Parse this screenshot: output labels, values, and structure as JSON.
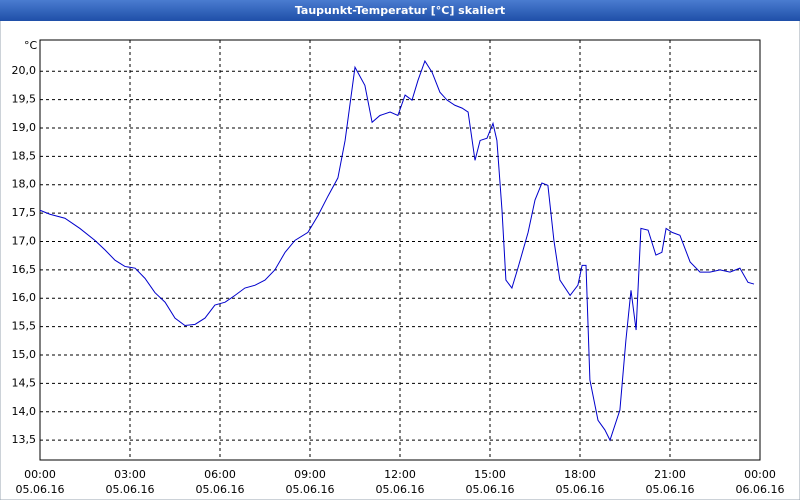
{
  "chart_data": {
    "type": "line",
    "title": "Taupunkt-Temperatur [°C] skaliert",
    "y_unit": "°C",
    "x": [
      0,
      0.33,
      0.83,
      1.33,
      1.83,
      2.17,
      2.5,
      2.83,
      3.17,
      3.5,
      3.83,
      4.17,
      4.5,
      4.83,
      5.17,
      5.5,
      5.83,
      6.17,
      6.5,
      6.83,
      7.17,
      7.5,
      7.83,
      8.17,
      8.5,
      8.93,
      9.27,
      9.6,
      9.93,
      10.17,
      10.5,
      10.83,
      11.07,
      11.33,
      11.67,
      11.93,
      12.17,
      12.4,
      12.6,
      12.83,
      13.07,
      13.33,
      13.57,
      13.83,
      14.07,
      14.27,
      14.5,
      14.67,
      14.9,
      15.1,
      15.23,
      15.4,
      15.53,
      15.73,
      15.93,
      16.27,
      16.5,
      16.73,
      16.93,
      17.13,
      17.33,
      17.67,
      17.93,
      18.07,
      18.2,
      18.33,
      18.6,
      18.83,
      19,
      19.33,
      19.53,
      19.7,
      19.87,
      20.03,
      20.27,
      20.53,
      20.73,
      20.87,
      21.07,
      21.33,
      21.67,
      22,
      22.33,
      22.67,
      23,
      23.33,
      23.6,
      23.8
    ],
    "series": [
      {
        "color": "#0000cc",
        "values": [
          17.55,
          17.48,
          17.41,
          17.23,
          17.02,
          16.85,
          16.67,
          16.56,
          16.53,
          16.35,
          16.1,
          15.93,
          15.65,
          15.52,
          15.54,
          15.65,
          15.88,
          15.93,
          16.05,
          16.18,
          16.23,
          16.32,
          16.5,
          16.81,
          17.02,
          17.16,
          17.46,
          17.8,
          18.12,
          18.78,
          20.07,
          19.75,
          19.1,
          19.22,
          19.28,
          19.22,
          19.58,
          19.49,
          19.84,
          20.18,
          19.98,
          19.63,
          19.49,
          19.4,
          19.35,
          19.28,
          18.43,
          18.78,
          18.82,
          19.08,
          18.78,
          17.55,
          16.32,
          16.18,
          16.53,
          17.16,
          17.73,
          18.03,
          17.99,
          17.02,
          16.32,
          16.05,
          16.23,
          16.58,
          16.58,
          14.56,
          13.85,
          13.68,
          13.5,
          14.03,
          15.26,
          16.14,
          15.44,
          17.23,
          17.2,
          16.76,
          16.81,
          17.23,
          17.16,
          17.11,
          16.64,
          16.46,
          16.46,
          16.5,
          16.46,
          16.53,
          16.28,
          16.25
        ]
      }
    ],
    "xlim": [
      0,
      24
    ],
    "xticks": [
      {
        "value": 0,
        "label": "00:00"
      },
      {
        "value": 3,
        "label": "03:00"
      },
      {
        "value": 6,
        "label": "06:00"
      },
      {
        "value": 9,
        "label": "09:00"
      },
      {
        "value": 12,
        "label": "12:00"
      },
      {
        "value": 15,
        "label": "15:00"
      },
      {
        "value": 18,
        "label": "18:00"
      },
      {
        "value": 21,
        "label": "21:00"
      },
      {
        "value": 24,
        "label": "00:00"
      }
    ],
    "xtick_dates": [
      "05.06.16",
      "05.06.16",
      "05.06.16",
      "05.06.16",
      "05.06.16",
      "05.06.16",
      "05.06.16",
      "05.06.16",
      "06.06.16"
    ],
    "ylim": [
      13.15,
      20.55
    ],
    "yticks": [
      {
        "value": 13.5,
        "label": "13,5"
      },
      {
        "value": 14,
        "label": "14,0"
      },
      {
        "value": 14.5,
        "label": "14,5"
      },
      {
        "value": 15,
        "label": "15,0"
      },
      {
        "value": 15.5,
        "label": "15,5"
      },
      {
        "value": 16,
        "label": "16,0"
      },
      {
        "value": 16.5,
        "label": "16,5"
      },
      {
        "value": 17,
        "label": "17,0"
      },
      {
        "value": 17.5,
        "label": "17,5"
      },
      {
        "value": 18,
        "label": "18,0"
      },
      {
        "value": 18.5,
        "label": "18,5"
      },
      {
        "value": 19,
        "label": "19,0"
      },
      {
        "value": 19.5,
        "label": "19,5"
      },
      {
        "value": 20,
        "label": "20,0"
      }
    ],
    "grid": true
  }
}
